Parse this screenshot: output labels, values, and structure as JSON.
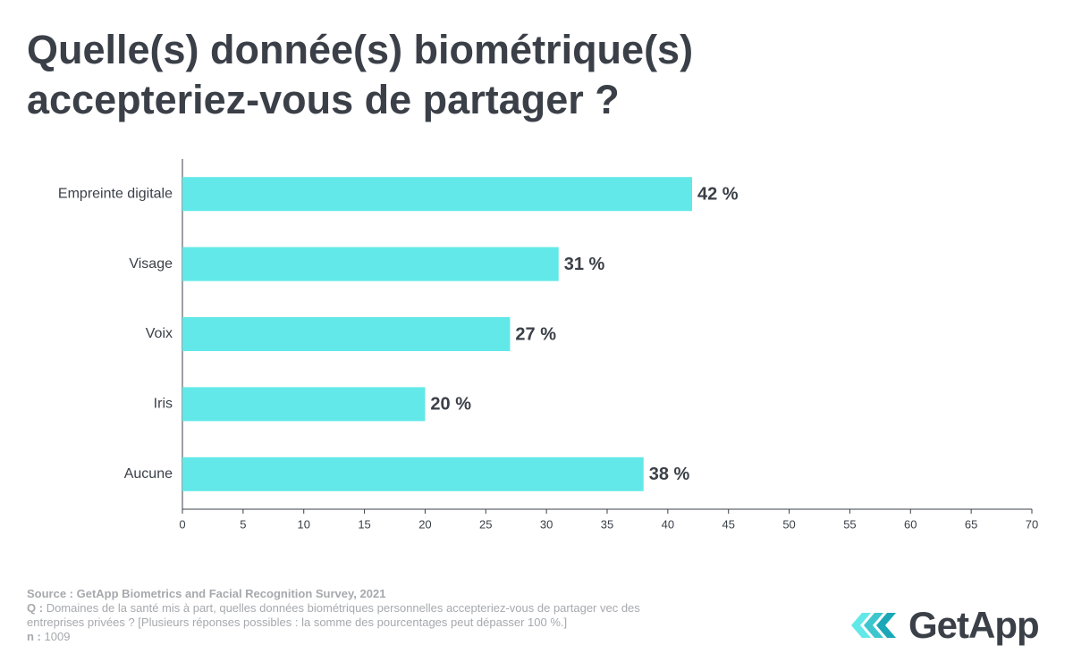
{
  "title": "Quelle(s) donnée(s) biométrique(s) accepteriez-vous de partager ?",
  "chart_data": {
    "type": "hbar",
    "categories": [
      "Empreinte digitale",
      "Visage",
      "Voix",
      "Iris",
      "Aucune"
    ],
    "values": [
      42,
      31,
      27,
      20,
      38
    ],
    "value_labels": [
      "42 %",
      "31 %",
      "27 %",
      "20 %",
      "38 %"
    ],
    "color": "#62e8e8",
    "xlim": [
      0,
      70
    ],
    "xticks": [
      0,
      5,
      10,
      15,
      20,
      25,
      30,
      35,
      40,
      45,
      50,
      55,
      60,
      65,
      70
    ],
    "grid": false
  },
  "footer": {
    "source": "Source : GetApp Biometrics and Facial Recognition Survey, 2021",
    "question_label": "Q :",
    "question": "Domaines de la santé mis à part, quelles données biométriques personnelles accepteriez-vous de partager vec des entreprises privées ? [Plusieurs réponses possibles : la somme des pourcentages peut dépasser 100 %.]",
    "n_label": "n :",
    "n": 1009
  },
  "logo": "GetApp"
}
